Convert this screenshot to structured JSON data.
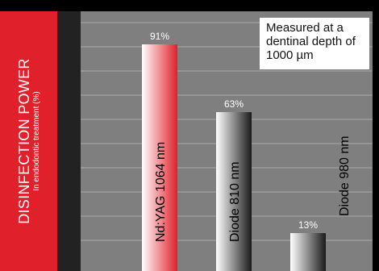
{
  "chart_data": {
    "type": "bar",
    "ylabel": "DISINFECTION POWER",
    "ylabel_sub": "In endodontic treatment (%)",
    "ylim": [
      0,
      100
    ],
    "grid": true,
    "categories": [
      "Nd:YAG 1064 nm",
      "Diode 810 nm",
      "Diode 980 nm"
    ],
    "values": [
      91,
      63,
      13
    ],
    "value_labels": [
      "91%",
      "63%",
      "13%"
    ],
    "annotation": "Measured at a dentinal depth of 1000 µm",
    "colors": {
      "panel": "#e0202a",
      "plot_background": "#7f7f7f",
      "gridline": "#a8a8a8",
      "bar_nd_yag": [
        "#ffffff",
        "#e0202a"
      ],
      "bar_diode": [
        "#ffffff",
        "#1a1a1a"
      ]
    }
  }
}
